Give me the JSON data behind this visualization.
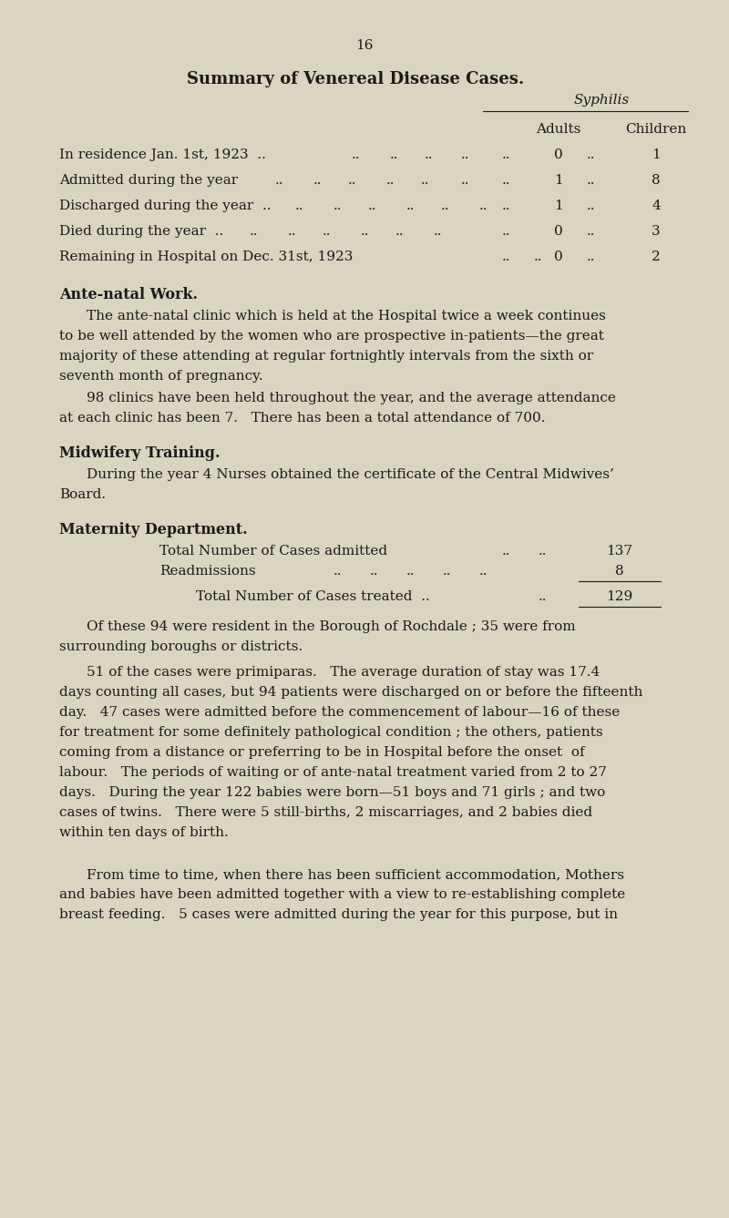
{
  "bg_color": "#d9d5c1",
  "text_color": "#1a1a1a",
  "page_number": "16",
  "title": "Summary of Venereal Disease Cases.",
  "syphilis_header": "Syphilis",
  "col_adults": "Adults",
  "col_children": "Children",
  "row_labels": [
    "In residence Jan. 1st, 1923  ..",
    "Admitted during the year",
    "Discharged during the year  ..",
    "Died during the year  ..",
    "Remaining in Hospital on Dec. 31st, 1923"
  ],
  "row_dots": [
    [
      "  ..  ",
      "  ..  ",
      "  ..  ",
      "  ..  "
    ],
    [
      "  ..  ",
      "  ..  ",
      "  ..  ",
      "  ..  ",
      "  ..  "
    ],
    [
      "  ..  ",
      "  ..  ",
      "  ..  ",
      "  ..  "
    ],
    [
      "  ..  ",
      "  ..  ",
      "  ..  ",
      "  ..  ",
      "  ..  "
    ],
    [
      "  ..  ",
      "  ..  "
    ]
  ],
  "row_adults": [
    "0",
    "1",
    "1",
    "0",
    "0"
  ],
  "row_children": [
    "1",
    "8",
    "4",
    "3",
    "2"
  ],
  "section1_heading": "Ante-natal Work.",
  "section1_para1": "The ante-natal clinic which is held at the Hospital twice a week continues to be well attended by the women who are prospective in-patients—the great majority of these attending at regular fortnightly intervals from the sixth or seventh month of pregnancy.",
  "section1_para2": "98 clinics have been held throughout the year, and the average attendance at each clinic has been 7.   There has been a total attendance of 700.",
  "section2_heading": "Midwifery Training.",
  "section2_para1": "During the year 4 Nurses obtained the certificate of the Central Midwives’ Board.",
  "section3_heading": "Maternity Department.",
  "mat_label1": "Total Number of Cases admitted",
  "mat_val1": "137",
  "mat_label2": "Readmissions",
  "mat_val2": "8",
  "mat_total_label": "Total Number of Cases treated  ..",
  "mat_total_val": "129",
  "section3_para1": "Of these 94 were resident in the Borough of Rochdale ; 35 were from surrounding boroughs or districts.",
  "section3_para2_line1": "51 of the cases were primiparas.   The average duration of stay was 17.4 days counting all cases, but 94 patients were discharged on or before the fifteenth day.   47 cases were admitted before the commencement of labour—16 of these for treatment for some definitely pathological condition ; the others, patients coming from a distance or preferring to be in Hospital before the onset of labour.   The periods of waiting or of ante-natal treatment varied from 2 to 27 days.   During the year 122 babies were born—51 boys and 71 girls ; and two cases of twins.   There were 5 still-births, 2 miscarriages, and 2 babies died within ten days of birth.",
  "section3_para3": "From time to time, when there has been sufficient accommodation, Mothers and babies have been admitted together with a view to re-establishing complete breast feeding.   5 cases were admitted during the year for this purpose, but in"
}
